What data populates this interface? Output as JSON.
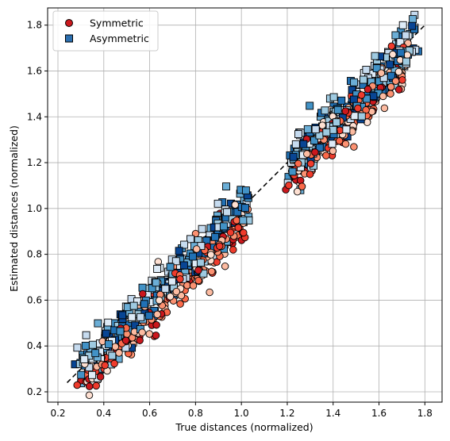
{
  "chart_data": {
    "type": "scatter",
    "title": "",
    "xlabel": "True distances (normalized)",
    "ylabel": "Estimated distances (normalized)",
    "xlim": [
      0.155,
      1.875
    ],
    "ylim": [
      0.155,
      1.875
    ],
    "xticks": [
      "0.2",
      "0.4",
      "0.6",
      "0.8",
      "1.0",
      "1.2",
      "1.4",
      "1.6",
      "1.8"
    ],
    "yticks": [
      "0.2",
      "0.4",
      "0.6",
      "0.8",
      "1.0",
      "1.2",
      "1.4",
      "1.6",
      "1.8"
    ],
    "grid": true,
    "legend_position": "top-left",
    "reference_line": {
      "style": "dashed",
      "color": "#000000",
      "x": [
        0.24,
        1.8
      ],
      "y": [
        0.24,
        1.8
      ]
    },
    "series": [
      {
        "name": "Symmetric",
        "marker": "circle",
        "legend_color": "#cb181d",
        "colors": [
          "#fee0d2",
          "#fcbba1",
          "#fc9272",
          "#fb6a4a",
          "#ef3b2c",
          "#cb181d"
        ],
        "clusters": [
          {
            "x_range": [
              0.3,
              1.02
            ],
            "slope": 1.0,
            "offset": -0.06,
            "spread_x": 0.05,
            "spread_y": 0.05,
            "count": 260
          },
          {
            "x_range": [
              1.22,
              1.72
            ],
            "slope": 1.0,
            "offset": -0.08,
            "spread_x": 0.05,
            "spread_y": 0.05,
            "count": 240
          }
        ]
      },
      {
        "name": "Asymmetric",
        "marker": "square",
        "legend_color": "#2c6fb0",
        "colors": [
          "#deebf7",
          "#c6dbef",
          "#9ecae1",
          "#6baed6",
          "#4292c6",
          "#2171b5",
          "#084594"
        ],
        "clusters": [
          {
            "x_range": [
              0.3,
              1.03
            ],
            "slope": 1.0,
            "offset": 0.0,
            "spread_x": 0.05,
            "spread_y": 0.05,
            "count": 300
          },
          {
            "x_range": [
              1.22,
              1.75
            ],
            "slope": 1.0,
            "offset": -0.02,
            "spread_x": 0.05,
            "spread_y": 0.05,
            "count": 300
          }
        ]
      }
    ]
  }
}
